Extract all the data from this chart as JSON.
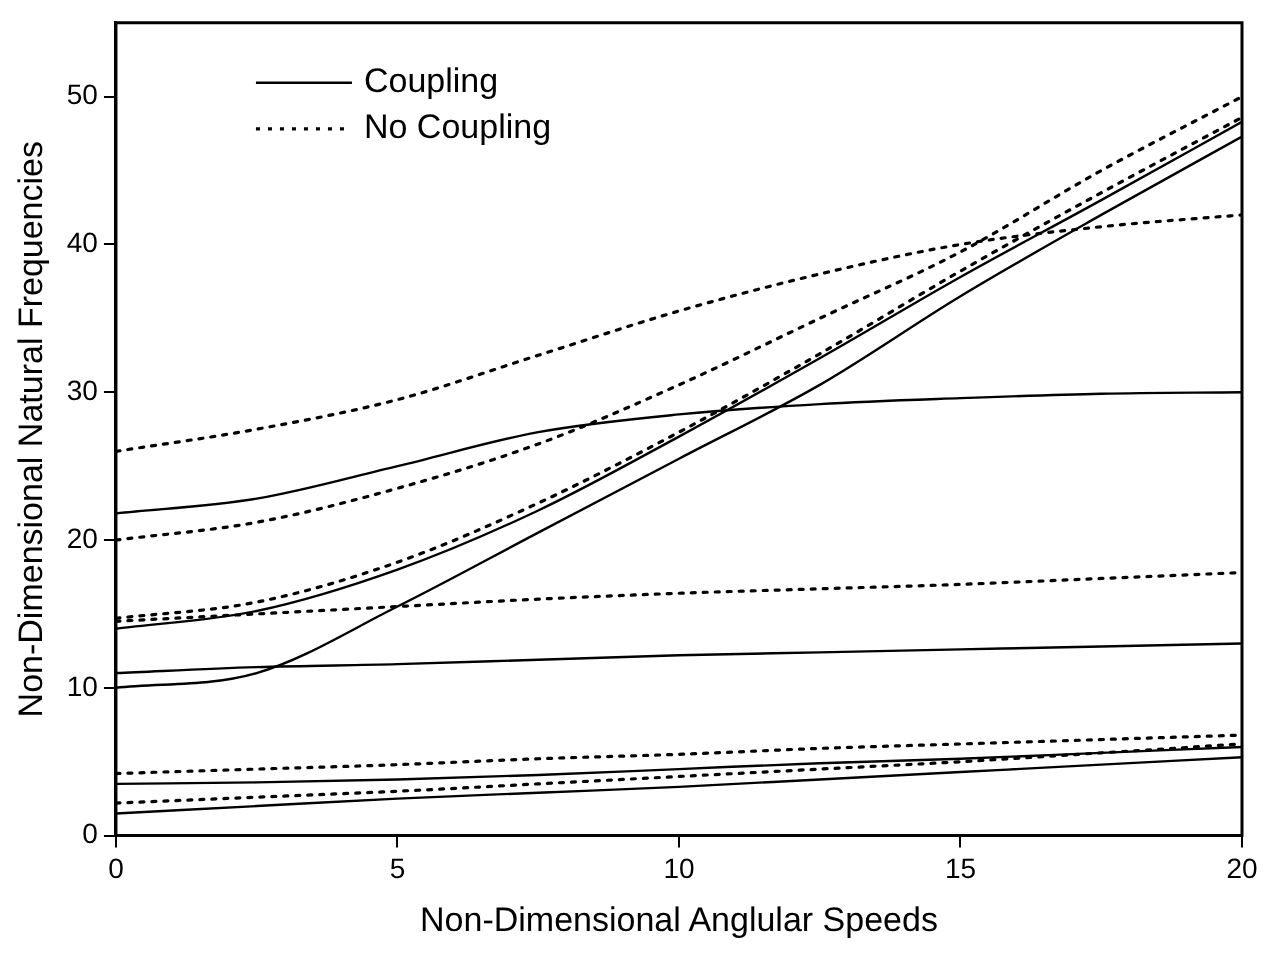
{
  "chart_data": {
    "type": "line",
    "xlabel": "Non-Dimensional Anglular Speeds",
    "ylabel": "Non-Dimensional Natural Frequencies",
    "xlim": [
      0,
      20
    ],
    "xticks": [
      0,
      5,
      10,
      15,
      20
    ],
    "ylim": [
      0,
      55
    ],
    "yticks": [
      0,
      10,
      20,
      30,
      40,
      50
    ],
    "grid": false,
    "legend": "top left",
    "marker": "none",
    "x": [
      0,
      2.5,
      5,
      7.5,
      10,
      12.5,
      15,
      17.5,
      20
    ],
    "series": [
      {
        "name": "Coupling",
        "color": "#000000",
        "line_style": "solid",
        "values": [
          1.5,
          2,
          2.5,
          2.9,
          3.3,
          3.8,
          4.3,
          4.8,
          5.3
        ]
      },
      {
        "color": "#000000",
        "line_style": "solid",
        "values": [
          3.5,
          3.6,
          3.8,
          4.1,
          4.5,
          4.9,
          5.2,
          5.6,
          6
        ]
      },
      {
        "color": "#000000",
        "line_style": "solid",
        "values": [
          10,
          11,
          15.5,
          20.5,
          25.5,
          30.5,
          36.5,
          42,
          47.3
        ]
      },
      {
        "color": "#000000",
        "line_style": "solid",
        "values": [
          11,
          11.4,
          11.6,
          11.9,
          12.2,
          12.4,
          12.6,
          12.8,
          13
        ]
      },
      {
        "color": "#000000",
        "line_style": "solid",
        "values": [
          14,
          15.2,
          18,
          22,
          27,
          32.3,
          37.8,
          43,
          48.3
        ]
      },
      {
        "color": "#000000",
        "line_style": "solid",
        "values": [
          21.8,
          22.8,
          25,
          27.3,
          28.5,
          29.2,
          29.6,
          29.9,
          30
        ]
      },
      {
        "name": "No Coupling",
        "color": "#000000",
        "line_style": "dotted",
        "values": [
          2.2,
          2.6,
          3,
          3.5,
          4,
          4.5,
          5,
          5.6,
          6.2
        ]
      },
      {
        "color": "#000000",
        "line_style": "dotted",
        "values": [
          4.2,
          4.5,
          4.8,
          5.2,
          5.5,
          5.9,
          6.2,
          6.5,
          6.8
        ]
      },
      {
        "color": "#000000",
        "line_style": "dotted",
        "values": [
          14.5,
          15,
          15.5,
          16,
          16.4,
          16.7,
          17,
          17.4,
          17.8
        ]
      },
      {
        "color": "#000000",
        "line_style": "dotted",
        "values": [
          14.7,
          15.8,
          18.5,
          22.5,
          27.3,
          32.6,
          38.2,
          43.5,
          48.6
        ]
      },
      {
        "color": "#000000",
        "line_style": "dotted",
        "values": [
          20,
          21.2,
          23.5,
          26.5,
          30.5,
          35,
          39.5,
          45,
          50
        ]
      },
      {
        "color": "#000000",
        "line_style": "dotted",
        "values": [
          26,
          27.5,
          29.5,
          32.5,
          35.5,
          38,
          40,
          41.2,
          42
        ]
      }
    ]
  }
}
